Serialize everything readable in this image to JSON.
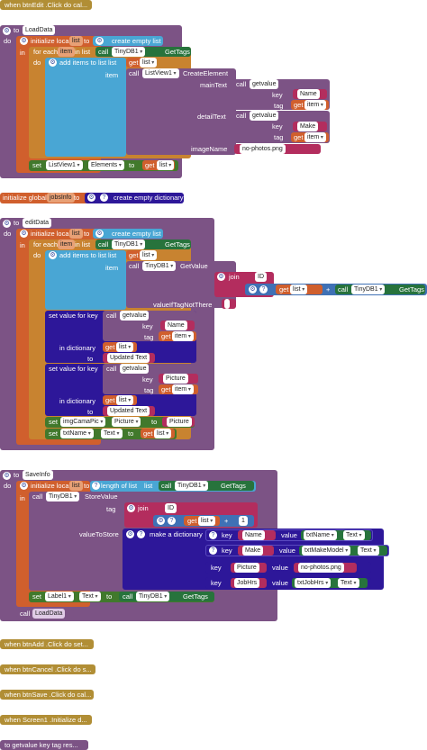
{
  "events": {
    "btnEdit": "when  btnEdit .Click do cal...",
    "btnAdd": "when  btnAdd .Click do set...",
    "btnCancel": "when  btnCancel .Click do s...",
    "btnSave": "when  btnSave .Click do cal...",
    "screen1": "when  Screen1 .Initialize d...",
    "getvalue": "to getvalue  key  tag res..."
  },
  "kw": {
    "to": "to",
    "do": "do",
    "in": "in",
    "item": "item",
    "tag": "tag",
    "key": "key",
    "value": "value",
    "call": "call",
    "set": "set",
    "get": "get",
    "join": "join",
    "plus": "+",
    "initialize_local": "initialize local",
    "in_list": "in list",
    "for_each": "for each",
    "create_empty_list": "create empty list",
    "create_empty_dictionary": "create empty dictionary",
    "add_items_to_list": "add items to list",
    "list": "list",
    "length_of_list": "length of list",
    "list_label": "list",
    "in_dictionary": "in dictionary",
    "set_value_for_key": "set value for key",
    "make_a_dictionary": "make a dictionary",
    "initialize_global": "initialize global",
    "createElement": "CreateElement",
    "mainText": "mainText",
    "detailText": "detailText",
    "imageName": "imageName",
    "getValue": "GetValue",
    "valueIfTagNotThere": "valueIfTagNotThere",
    "storeValue": "StoreValue",
    "valueToStore": "valueToStore",
    "getTags": "GetTags"
  },
  "names": {
    "loadData": "LoadData",
    "editData": "editData",
    "saveInfo": "SaveInfo",
    "list": "list",
    "item": "item",
    "tinyDB1": "TinyDB1",
    "listView1": "ListView1",
    "getvalue": "getvalue",
    "elements": "Elements",
    "jobsInfo": "jobsInfo",
    "imgCamaPic": "imgCamaPic",
    "txtName": "txtName",
    "txtMakeModel": "txtMakeModel",
    "txtJobHrs": "txtJobHrs",
    "label1": "Label1",
    "text": "Text",
    "picture": "Picture"
  },
  "strings": {
    "name": "Name",
    "make": "Make",
    "noPhotos": "no-photos.png",
    "id": "ID",
    "empty": " ",
    "updatedText": "Updated Text",
    "picture": "Picture",
    "jobHrs": "JobHrs",
    "one": "1"
  }
}
